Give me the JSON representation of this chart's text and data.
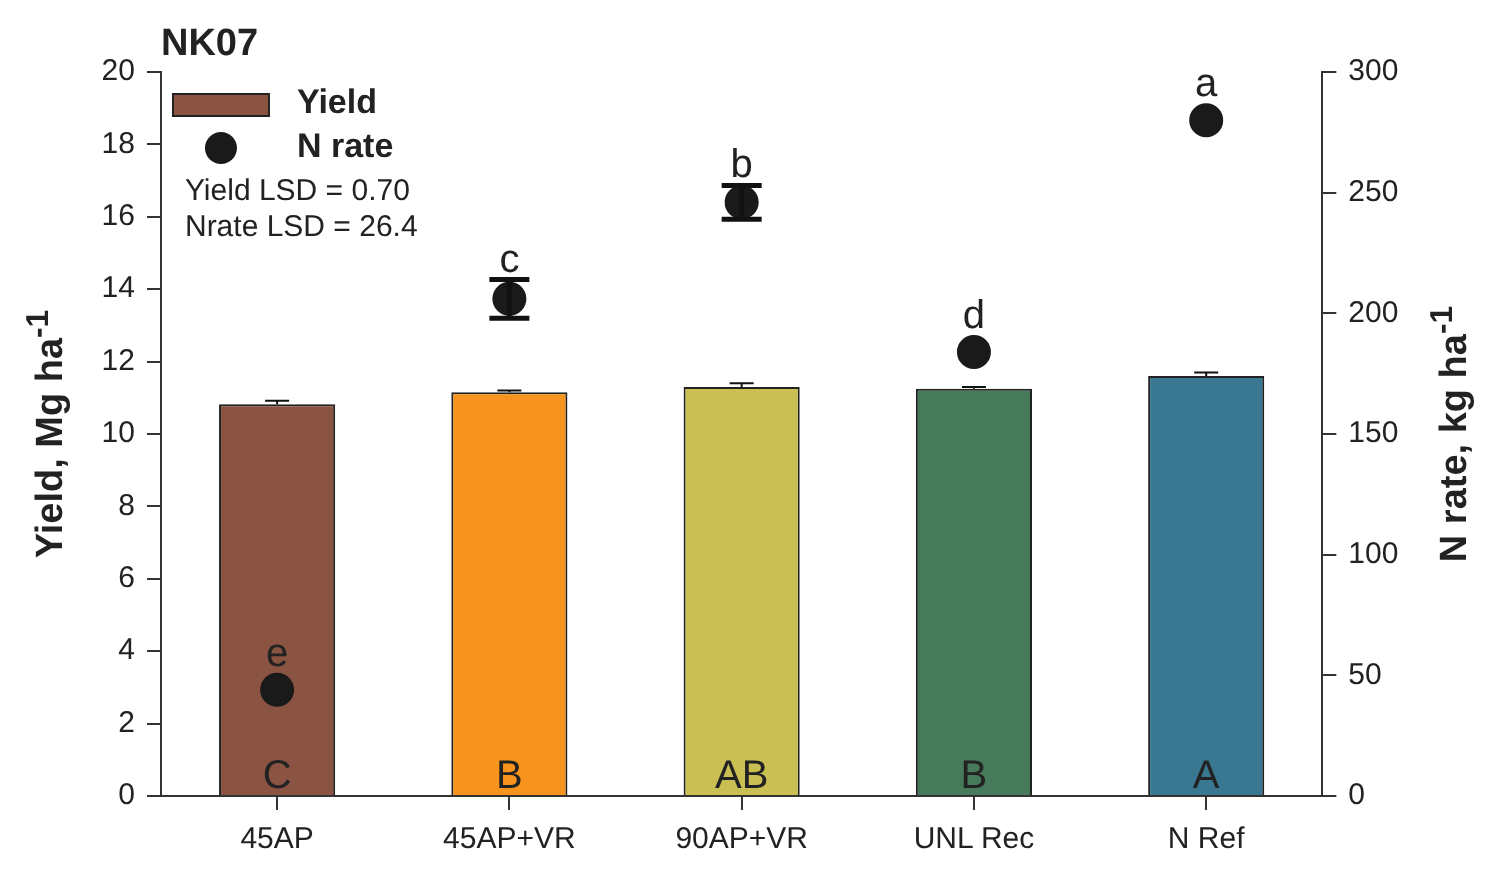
{
  "chart_data": {
    "type": "bar",
    "title": "NK07",
    "ylabel": "Yield, Mg ha$^{-1}$",
    "y2label": "N rate, kg ha$^{-1}$",
    "categories": [
      "45AP",
      "45AP+VR",
      "90AP+VR",
      "UNL Rec",
      "N Ref"
    ],
    "series": [
      {
        "name": "Yield",
        "colors": [
          "#8b5442",
          "#f7941d",
          "#c9bf52",
          "#477a5b",
          "#3a7892"
        ],
        "color": "#8b5442",
        "values": [
          10.82,
          11.15,
          11.3,
          11.25,
          11.6
        ],
        "errors": [
          0.1,
          0.05,
          0.1,
          0.05,
          0.1
        ],
        "value_labels": [
          "C",
          "B",
          "AB",
          "B",
          "A"
        ]
      },
      {
        "name": "N rate",
        "type": "scatter",
        "axis": "y2",
        "color": "#1a1a1a",
        "values": [
          44,
          206,
          246,
          184,
          280
        ],
        "errors": [
          null,
          8,
          7,
          null,
          null
        ],
        "value_labels": [
          "e",
          "c",
          "b",
          "d",
          "a"
        ]
      }
    ],
    "ylim": [
      0,
      20
    ],
    "yticks": [
      0,
      2,
      4,
      6,
      8,
      10,
      12,
      14,
      16,
      18,
      20
    ],
    "y2lim": [
      0,
      300
    ],
    "y2ticks": [
      0,
      50,
      100,
      150,
      200,
      250,
      300
    ],
    "grid": false,
    "legend": "top left",
    "marker": "circle",
    "annotations": [
      "Yield LSD = 0.70",
      "Nrate LSD = 26.4"
    ]
  }
}
